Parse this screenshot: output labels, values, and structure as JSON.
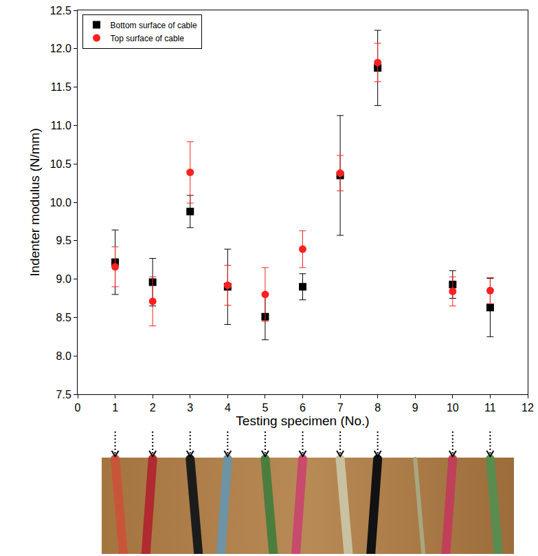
{
  "chart_data": {
    "type": "scatter",
    "x_label": "Testing specimen (No.)",
    "y_label": "Indenter modulus (N/mm)",
    "x": [
      1,
      2,
      3,
      4,
      5,
      6,
      7,
      8,
      10,
      11
    ],
    "series": [
      {
        "name": "Bottom surface of cable",
        "color": "#000000",
        "marker": "square",
        "values": [
          9.22,
          8.96,
          9.88,
          8.9,
          8.51,
          8.9,
          10.35,
          11.75,
          8.93,
          8.63
        ],
        "errors": [
          0.42,
          0.31,
          0.21,
          0.49,
          0.3,
          0.17,
          0.78,
          0.49,
          0.18,
          0.38
        ]
      },
      {
        "name": "Top surface of cable",
        "color": "#ff2020",
        "marker": "circle",
        "values": [
          9.16,
          8.71,
          10.39,
          8.92,
          8.8,
          9.39,
          10.38,
          11.82,
          8.84,
          8.85
        ],
        "errors": [
          0.26,
          0.32,
          0.4,
          0.26,
          0.35,
          0.24,
          0.23,
          0.25,
          0.19,
          0.17
        ]
      }
    ],
    "xlim": [
      0,
      12
    ],
    "xticks": [
      0,
      1,
      2,
      3,
      4,
      5,
      6,
      7,
      8,
      9,
      10,
      11,
      12
    ],
    "ylim": [
      7.5,
      12.5
    ],
    "yticks": [
      7.5,
      {
        "value": 8,
        "label": "8.0"
      },
      8.5,
      {
        "value": 9,
        "label": "9.0"
      },
      9.5,
      {
        "value": 10,
        "label": "10.0"
      },
      10.5,
      {
        "value": 11,
        "label": "11.0"
      },
      11.5,
      {
        "value": 12,
        "label": "12.0"
      },
      12.5
    ],
    "legend": "top-left",
    "grid": false
  }
}
